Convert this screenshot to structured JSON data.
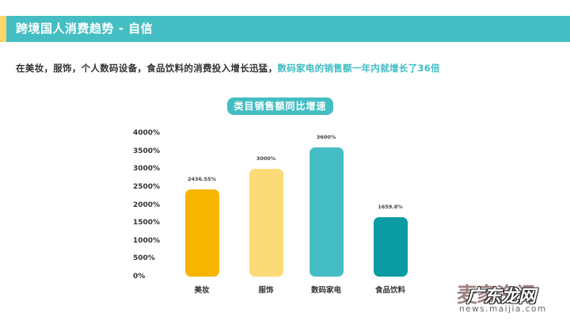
{
  "header": {
    "title": "跨境国人消费趋势 - 自信",
    "bar_color": "#45bec3",
    "accent_color": "#fbd66a"
  },
  "intro": {
    "text_plain": "在美妆，服饰，个人数码设备，食品饮料的消费投入增长迅猛，",
    "text_highlight": "数码家电的销售额一年内就增长了36倍",
    "highlight_color": "#3fbcc4"
  },
  "chart_data": {
    "type": "bar",
    "title": "类目销售额同比增速",
    "categories": [
      "美妆",
      "服饰",
      "数码家电",
      "食品饮料"
    ],
    "values": [
      2436.55,
      3000,
      3600,
      1659.8
    ],
    "value_labels": [
      "2436.55%",
      "3000%",
      "3600%",
      "1659.8%"
    ],
    "colors": [
      "#f7b500",
      "#fbdb77",
      "#45bec3",
      "#0a9ba3"
    ],
    "xlabel": "",
    "ylabel": "",
    "ylim": [
      0,
      4000
    ],
    "yticks": [
      "0%",
      "500%",
      "1000%",
      "1500%",
      "2000%",
      "2500%",
      "3000%",
      "3500%",
      "4000%"
    ],
    "grid": false,
    "legend": "none"
  },
  "watermark": {
    "back_text": "麦家资讯",
    "front_text": "广东龙网",
    "url": "news.maijia.com"
  }
}
